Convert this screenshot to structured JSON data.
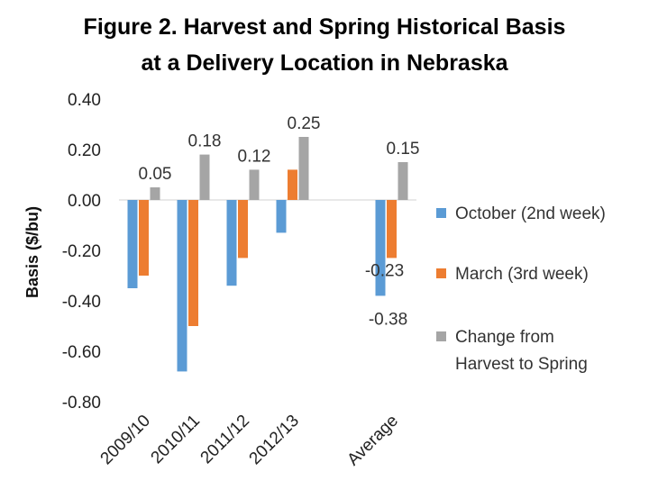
{
  "chart_data": {
    "type": "bar",
    "title": "Figure 2.  Harvest and Spring Historical Basis",
    "subtitle": "at a Delivery Location in Nebraska",
    "ylabel": "Basis ($/bu)",
    "xlabel": "",
    "ylim": [
      -0.8,
      0.4
    ],
    "yticks": [
      0.4,
      0.2,
      0.0,
      -0.2,
      -0.4,
      -0.6,
      -0.8
    ],
    "ytick_labels": [
      "0.40",
      "0.20",
      "0.00",
      "-0.20",
      "-0.40",
      "-0.60",
      "-0.80"
    ],
    "grid": false,
    "legend_position": "right",
    "categories": [
      "2009/10",
      "2010/11",
      "2011/12",
      "2012/13",
      "",
      "Average"
    ],
    "series": [
      {
        "name": "October (2nd week)",
        "color": "#5B9BD5",
        "values": [
          -0.35,
          -0.68,
          -0.34,
          -0.13,
          null,
          -0.38
        ],
        "labels": [
          "",
          "",
          "",
          "",
          "",
          "-0.38"
        ]
      },
      {
        "name": "March (3rd week)",
        "color": "#ED7D31",
        "values": [
          -0.3,
          -0.5,
          -0.23,
          0.12,
          null,
          -0.23
        ],
        "labels": [
          "",
          "",
          "",
          "",
          "",
          "-0.23"
        ]
      },
      {
        "name": "Change from Harvest to Spring",
        "legend_lines": [
          "Change from",
          "Harvest to Spring"
        ],
        "color": "#A5A5A5",
        "values": [
          0.05,
          0.18,
          0.12,
          0.25,
          null,
          0.15
        ],
        "labels": [
          "0.05",
          "0.18",
          "0.12",
          "0.25",
          "",
          "0.15"
        ]
      }
    ]
  }
}
